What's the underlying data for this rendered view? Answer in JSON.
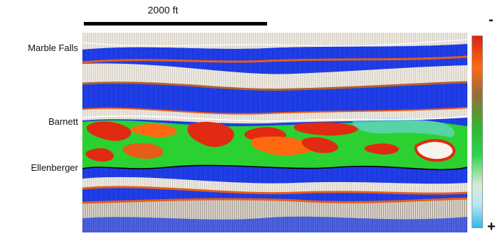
{
  "scale": {
    "label": "2000  ft"
  },
  "horizons": {
    "marble_falls": "Marble Falls",
    "barnett": "Barnett",
    "ellenberger": "Ellenberger"
  },
  "colorbar": {
    "top_sign": "-",
    "bottom_sign": "+"
  },
  "colors": {
    "blue": "#1f3ee8",
    "white": "#f7f4ee",
    "brown": "#b2622c",
    "orange": "#e85c16",
    "red": "#e12a12",
    "green": "#2bd130",
    "cyan": "#73d6f0",
    "black": "#000000"
  }
}
